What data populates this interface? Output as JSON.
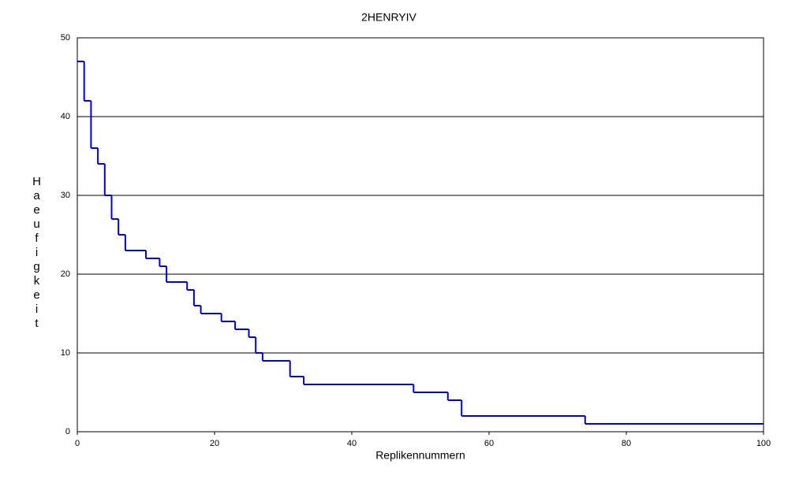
{
  "chart_data": {
    "type": "step",
    "title": "2HENRYIV",
    "x_label": "Replikennummern",
    "y_label": "Haeufigkeit",
    "x": [
      0,
      1,
      2,
      3,
      4,
      5,
      6,
      7,
      10,
      12,
      13,
      16,
      17,
      18,
      21,
      23,
      25,
      26,
      27,
      31,
      33,
      49,
      54,
      56,
      74,
      100
    ],
    "series": [
      {
        "name": "2HENRYIV",
        "color": "#0000cc",
        "values": [
          47,
          42,
          36,
          34,
          30,
          27,
          25,
          23,
          22,
          21,
          19,
          18,
          16,
          15,
          14,
          13,
          12,
          10,
          9,
          7,
          6,
          5,
          4,
          2,
          1,
          1
        ]
      }
    ],
    "step": "post",
    "xlim": [
      0,
      100
    ],
    "xticks": [
      0,
      20,
      40,
      60,
      80,
      100
    ],
    "ylim": [
      0,
      50
    ],
    "yticks": [
      0,
      10,
      20,
      30,
      40,
      50
    ],
    "grid": true
  }
}
